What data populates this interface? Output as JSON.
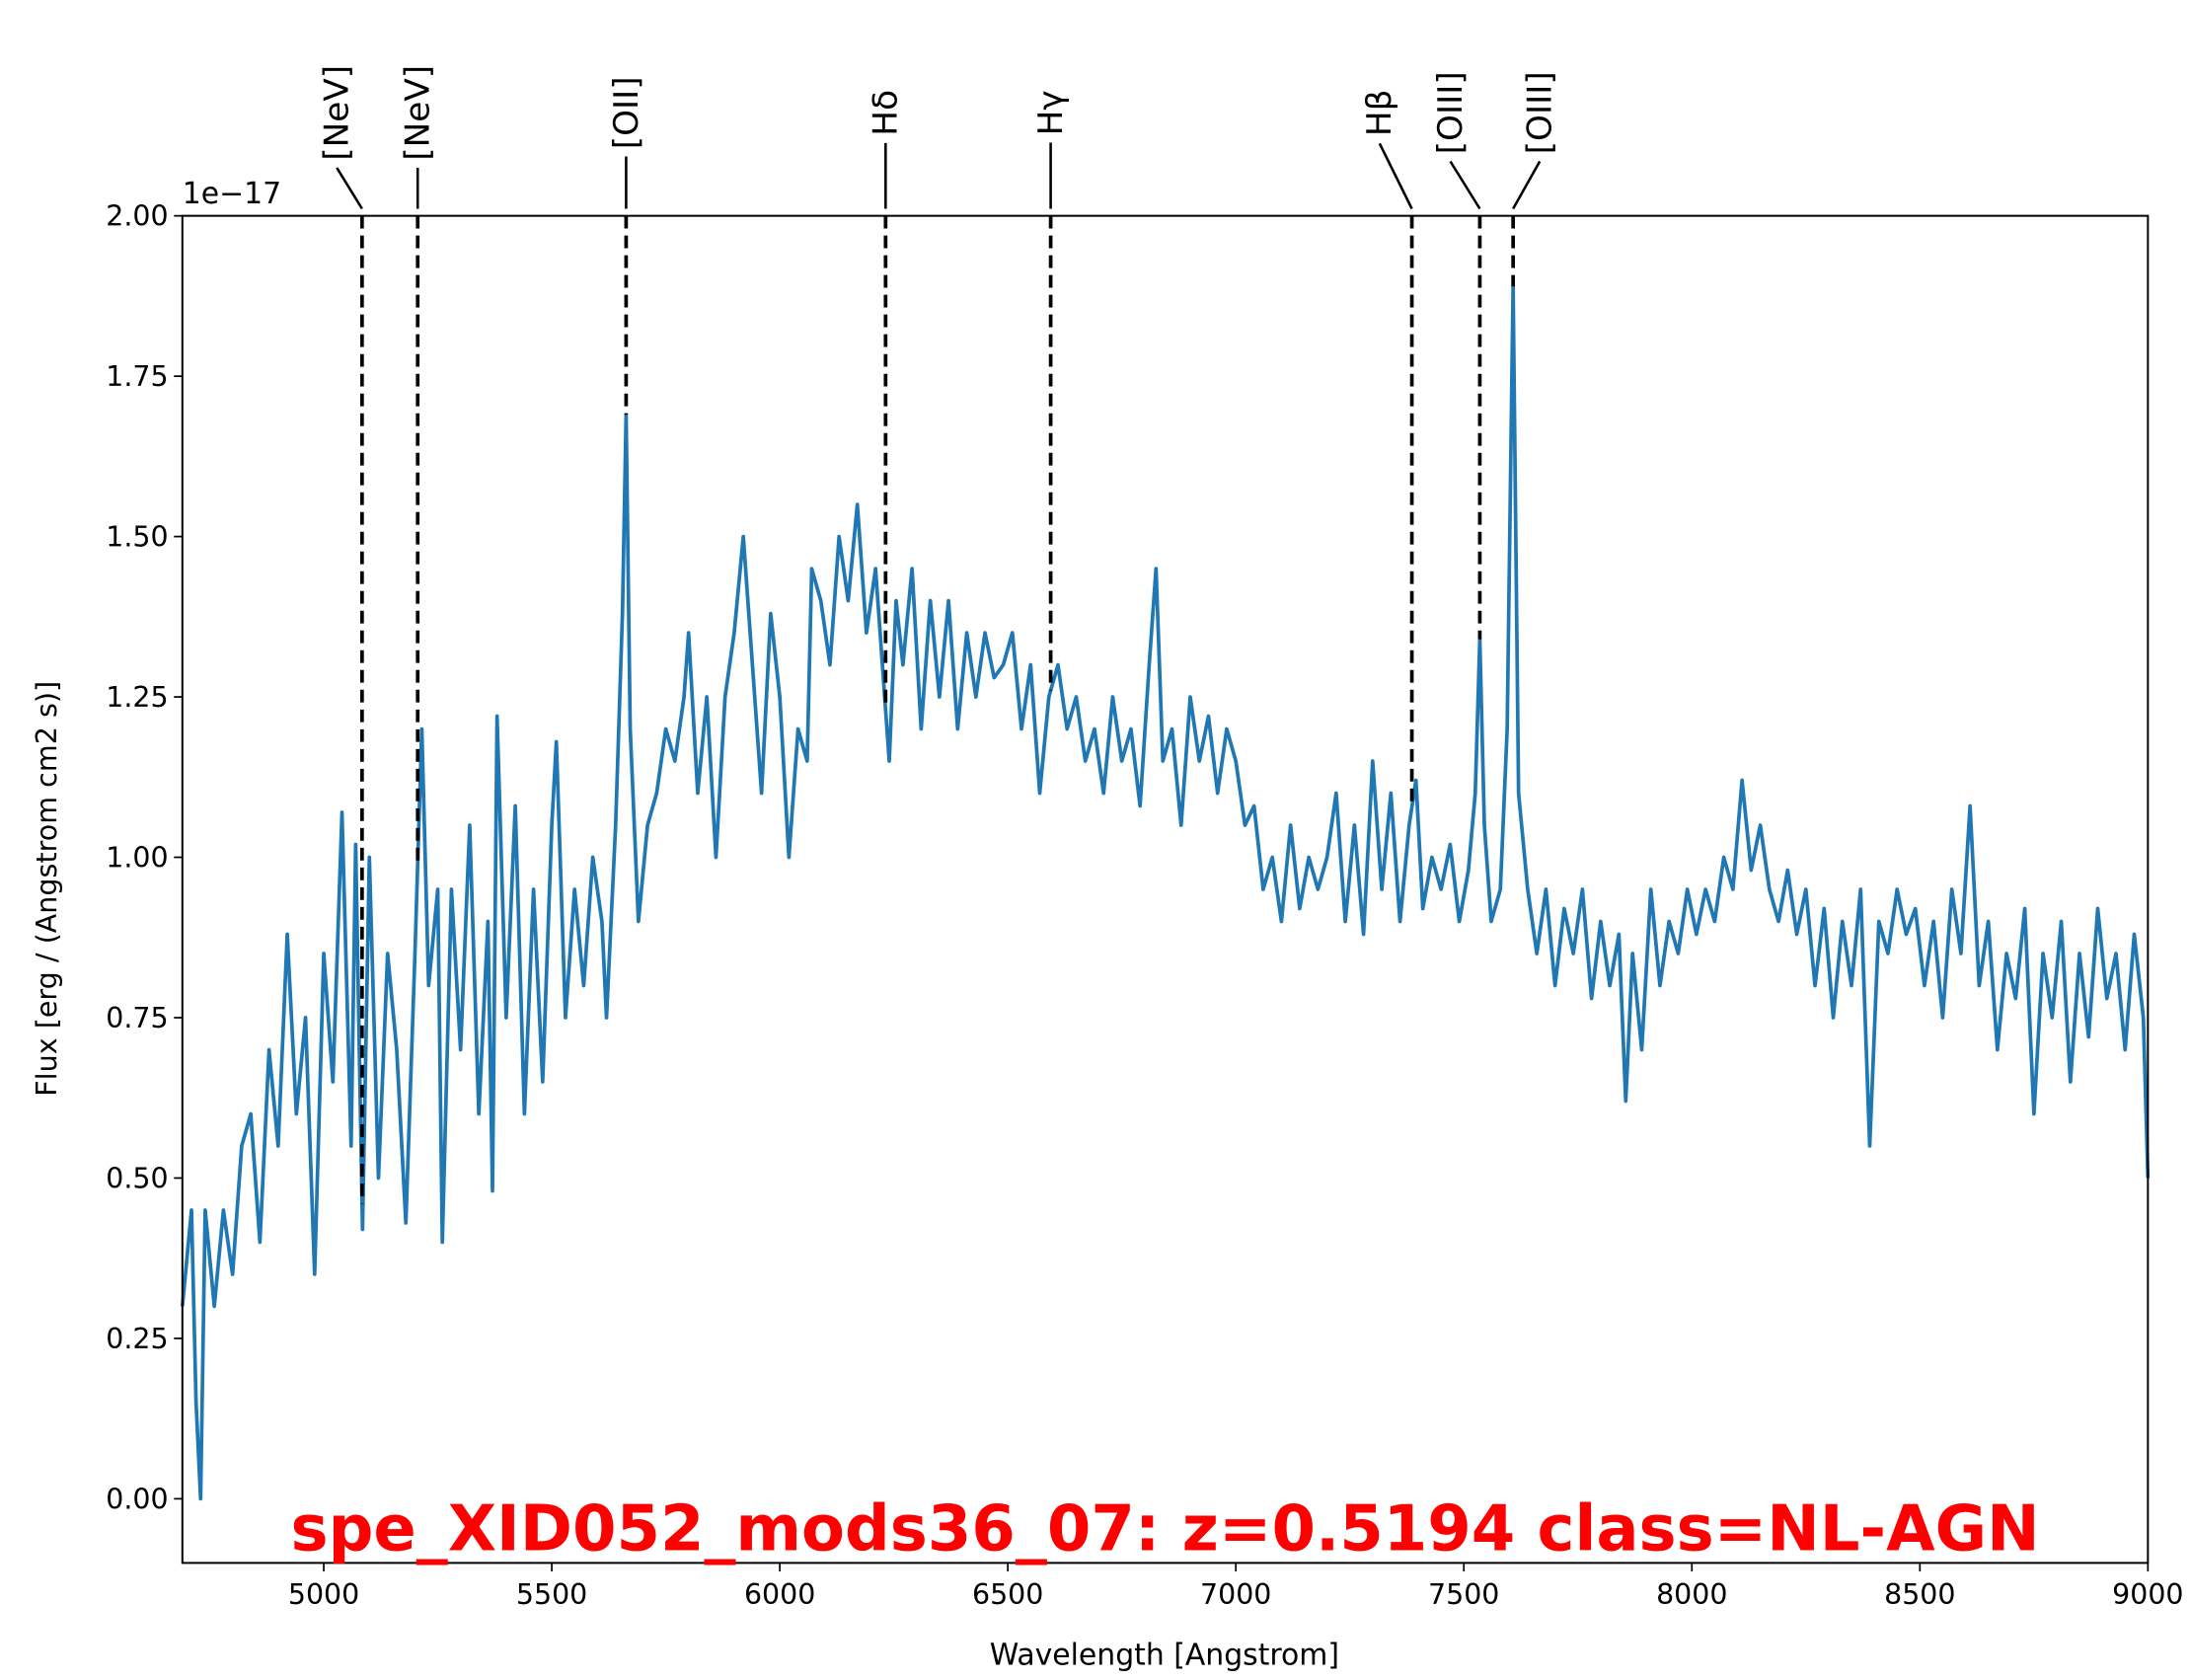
{
  "chart_data": {
    "type": "line",
    "title": "spe_XID052_mods36_07: z=0.5194 class=NL-AGN",
    "x_label": "Wavelength [Angstrom]",
    "y_label": "Flux [erg / (Angstrom cm2 s)]",
    "y_offset_label": "1e−17",
    "xlim": [
      4690,
      9000
    ],
    "ylim": [
      -0.1,
      2.0
    ],
    "xticks": [
      5000,
      5500,
      6000,
      6500,
      7000,
      7500,
      8000,
      8500,
      9000
    ],
    "yticks": [
      {
        "value": 0,
        "label": "0.00"
      },
      {
        "value": 0.25,
        "label": "0.25"
      },
      {
        "value": 0.5,
        "label": "0.50"
      },
      {
        "value": 0.75,
        "label": "0.75"
      },
      {
        "value": 1.0,
        "label": "1.00"
      },
      {
        "value": 1.25,
        "label": "1.25"
      },
      {
        "value": 1.5,
        "label": "1.50"
      },
      {
        "value": 1.75,
        "label": "1.75"
      },
      {
        "value": 2.0,
        "label": "2.00"
      }
    ],
    "lines": [
      {
        "label": "[NeV]",
        "x": 5084
      },
      {
        "label": "[NeV]",
        "x": 5206
      },
      {
        "label": "[OII]",
        "x": 5663
      },
      {
        "label": "Hδ",
        "x": 6232
      },
      {
        "label": "Hγ",
        "x": 6594
      },
      {
        "label": "Hβ",
        "x": 7386
      },
      {
        "label": "[OIII]",
        "x": 7535
      },
      {
        "label": "[OIII]",
        "x": 7608
      }
    ],
    "series": [
      {
        "color": "#1f77b4",
        "x": [
          4690,
          4710,
          4720,
          4730,
          4740,
          4760,
          4780,
          4800,
          4820,
          4840,
          4860,
          4880,
          4900,
          4920,
          4940,
          4960,
          4980,
          5000,
          5020,
          5040,
          5060,
          5070,
          5085,
          5100,
          5120,
          5140,
          5160,
          5180,
          5200,
          5215,
          5230,
          5250,
          5260,
          5280,
          5300,
          5320,
          5340,
          5360,
          5370,
          5380,
          5400,
          5420,
          5440,
          5460,
          5480,
          5500,
          5510,
          5530,
          5550,
          5570,
          5590,
          5610,
          5620,
          5640,
          5655,
          5663,
          5672,
          5690,
          5710,
          5730,
          5750,
          5770,
          5790,
          5800,
          5820,
          5840,
          5860,
          5880,
          5900,
          5920,
          5940,
          5960,
          5980,
          6000,
          6020,
          6040,
          6060,
          6070,
          6090,
          6110,
          6130,
          6150,
          6170,
          6190,
          6210,
          6225,
          6240,
          6255,
          6270,
          6290,
          6310,
          6330,
          6350,
          6370,
          6390,
          6410,
          6430,
          6450,
          6470,
          6490,
          6510,
          6530,
          6550,
          6570,
          6590,
          6610,
          6630,
          6650,
          6670,
          6690,
          6710,
          6730,
          6750,
          6770,
          6790,
          6810,
          6825,
          6840,
          6860,
          6880,
          6900,
          6920,
          6940,
          6960,
          6980,
          7000,
          7020,
          7040,
          7060,
          7080,
          7100,
          7120,
          7140,
          7160,
          7180,
          7200,
          7220,
          7240,
          7260,
          7280,
          7300,
          7320,
          7340,
          7360,
          7380,
          7395,
          7410,
          7430,
          7450,
          7470,
          7490,
          7510,
          7525,
          7535,
          7545,
          7560,
          7580,
          7595,
          7608,
          7620,
          7640,
          7660,
          7680,
          7700,
          7720,
          7740,
          7760,
          7780,
          7800,
          7820,
          7840,
          7855,
          7870,
          7890,
          7910,
          7930,
          7950,
          7970,
          7990,
          8010,
          8030,
          8050,
          8070,
          8090,
          8110,
          8130,
          8150,
          8170,
          8190,
          8210,
          8230,
          8250,
          8270,
          8290,
          8310,
          8330,
          8350,
          8370,
          8390,
          8410,
          8430,
          8450,
          8470,
          8490,
          8510,
          8530,
          8550,
          8570,
          8590,
          8610,
          8630,
          8650,
          8670,
          8690,
          8710,
          8730,
          8750,
          8770,
          8790,
          8810,
          8830,
          8850,
          8870,
          8890,
          8910,
          8930,
          8950,
          8970,
          8990,
          9000
        ],
        "values": [
          0.3,
          0.45,
          0.15,
          0.0,
          0.45,
          0.3,
          0.45,
          0.35,
          0.55,
          0.6,
          0.4,
          0.7,
          0.55,
          0.88,
          0.6,
          0.75,
          0.35,
          0.85,
          0.65,
          1.07,
          0.55,
          1.02,
          0.42,
          1.0,
          0.5,
          0.85,
          0.7,
          0.43,
          0.85,
          1.2,
          0.8,
          0.95,
          0.4,
          0.95,
          0.7,
          1.05,
          0.6,
          0.9,
          0.48,
          1.22,
          0.75,
          1.08,
          0.6,
          0.95,
          0.65,
          1.05,
          1.18,
          0.75,
          0.95,
          0.8,
          1.0,
          0.9,
          0.75,
          1.05,
          1.38,
          1.69,
          1.2,
          0.9,
          1.05,
          1.1,
          1.2,
          1.15,
          1.25,
          1.35,
          1.1,
          1.25,
          1.0,
          1.25,
          1.35,
          1.5,
          1.3,
          1.1,
          1.38,
          1.25,
          1.0,
          1.2,
          1.15,
          1.45,
          1.4,
          1.3,
          1.5,
          1.4,
          1.55,
          1.35,
          1.45,
          1.3,
          1.15,
          1.4,
          1.3,
          1.45,
          1.2,
          1.4,
          1.25,
          1.4,
          1.2,
          1.35,
          1.25,
          1.35,
          1.28,
          1.3,
          1.35,
          1.2,
          1.3,
          1.1,
          1.25,
          1.3,
          1.2,
          1.25,
          1.15,
          1.2,
          1.1,
          1.25,
          1.15,
          1.2,
          1.08,
          1.3,
          1.45,
          1.15,
          1.2,
          1.05,
          1.25,
          1.15,
          1.22,
          1.1,
          1.2,
          1.15,
          1.05,
          1.08,
          0.95,
          1.0,
          0.9,
          1.05,
          0.92,
          1.0,
          0.95,
          1.0,
          1.1,
          0.9,
          1.05,
          0.88,
          1.15,
          0.95,
          1.1,
          0.9,
          1.05,
          1.12,
          0.92,
          1.0,
          0.95,
          1.02,
          0.9,
          0.98,
          1.1,
          1.34,
          1.05,
          0.9,
          0.95,
          1.2,
          1.89,
          1.1,
          0.95,
          0.85,
          0.95,
          0.8,
          0.92,
          0.85,
          0.95,
          0.78,
          0.9,
          0.8,
          0.88,
          0.62,
          0.85,
          0.7,
          0.95,
          0.8,
          0.9,
          0.85,
          0.95,
          0.88,
          0.95,
          0.9,
          1.0,
          0.95,
          1.12,
          0.98,
          1.05,
          0.95,
          0.9,
          0.98,
          0.88,
          0.95,
          0.8,
          0.92,
          0.75,
          0.9,
          0.8,
          0.95,
          0.55,
          0.9,
          0.85,
          0.95,
          0.88,
          0.92,
          0.8,
          0.9,
          0.75,
          0.95,
          0.85,
          1.08,
          0.8,
          0.9,
          0.7,
          0.85,
          0.78,
          0.92,
          0.6,
          0.85,
          0.75,
          0.9,
          0.65,
          0.85,
          0.72,
          0.92,
          0.78,
          0.85,
          0.7,
          0.88,
          0.75,
          0.5
        ]
      }
    ]
  }
}
